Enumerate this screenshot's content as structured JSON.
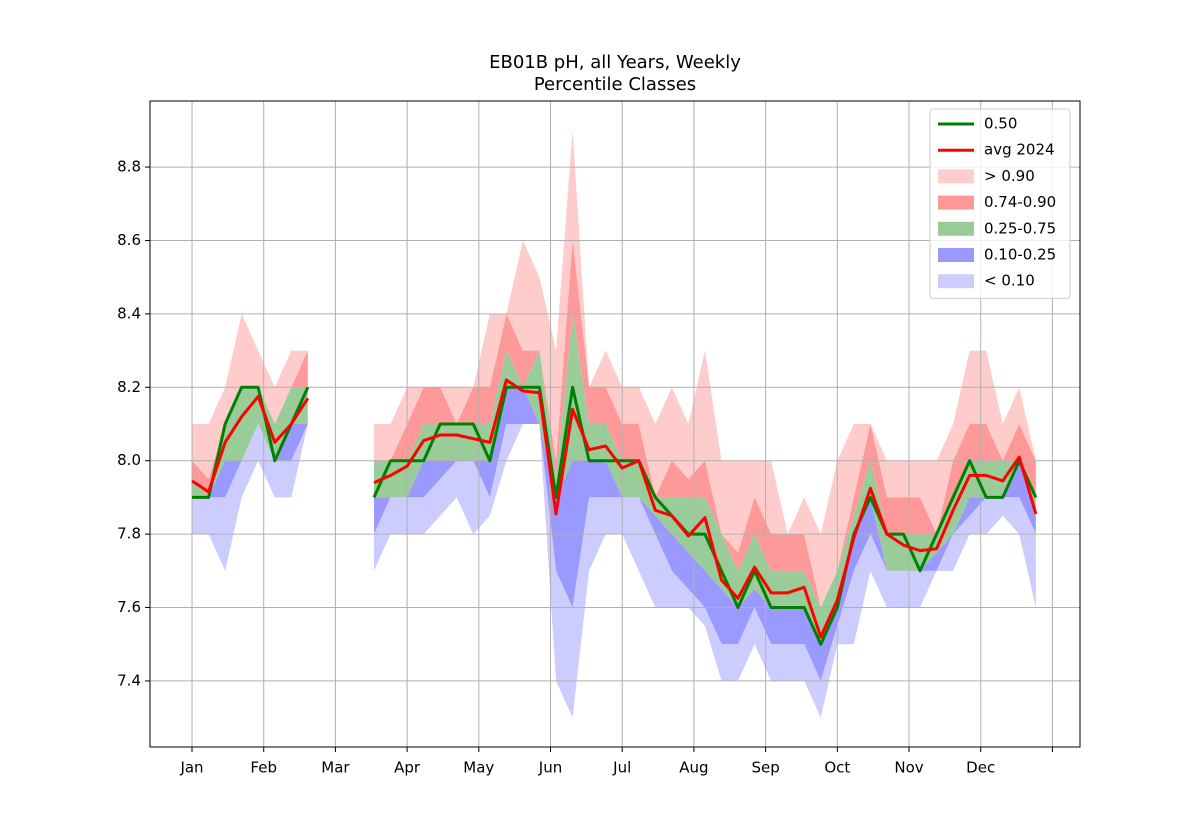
{
  "chart_data": {
    "type": "percentile_bands",
    "title": "EB01B pH, all Years, Weekly",
    "subtitle": "Percentile Classes",
    "x": [
      0,
      0.231,
      0.462,
      0.692,
      0.923,
      1.154,
      1.385,
      1.615,
      1.846,
      2.077,
      2.308,
      2.538,
      2.769,
      3.0,
      3.231,
      3.462,
      3.692,
      3.923,
      4.154,
      4.385,
      4.615,
      4.846,
      5.077,
      5.308,
      5.538,
      5.769,
      6.0,
      6.231,
      6.462,
      6.692,
      6.923,
      7.154,
      7.385,
      7.615,
      7.846,
      8.077,
      8.308,
      8.538,
      8.769,
      9.0,
      9.231,
      9.462,
      9.692,
      9.923,
      10.154,
      10.385,
      10.615,
      10.846,
      11.077,
      11.308,
      11.538,
      11.769
    ],
    "series": [
      {
        "name": "0.50",
        "color": "#008000",
        "values": [
          7.9,
          7.9,
          8.1,
          8.2,
          8.2,
          8.0,
          8.1,
          8.2,
          null,
          null,
          null,
          7.9,
          8.0,
          8.0,
          8.0,
          8.1,
          8.1,
          8.1,
          8.0,
          8.2,
          8.2,
          8.2,
          7.9,
          8.2,
          8.0,
          8.0,
          8.0,
          8.0,
          7.9,
          7.85,
          7.8,
          7.8,
          7.7,
          7.6,
          7.7,
          7.6,
          7.6,
          7.6,
          7.5,
          7.6,
          7.8,
          7.9,
          7.8,
          7.8,
          7.7,
          7.8,
          7.9,
          8.0,
          7.9,
          7.9,
          8.0,
          7.9
        ]
      },
      {
        "name": "avg 2024",
        "color": "#ff0000",
        "values": [
          7.945,
          7.915,
          8.05,
          8.12,
          8.175,
          8.05,
          8.1,
          8.17,
          null,
          null,
          null,
          7.94,
          7.96,
          7.985,
          8.055,
          8.07,
          8.07,
          8.06,
          8.05,
          8.22,
          8.19,
          8.185,
          7.855,
          8.14,
          8.03,
          8.04,
          7.98,
          8.0,
          7.865,
          7.85,
          7.795,
          7.845,
          7.675,
          7.625,
          7.71,
          7.64,
          7.64,
          7.655,
          7.52,
          7.62,
          7.79,
          7.925,
          7.8,
          7.77,
          7.755,
          7.76,
          7.865,
          7.96,
          7.96,
          7.945,
          8.01,
          7.855
        ]
      }
    ],
    "bands": [
      {
        "name": "> 0.90",
        "color": "#ffcccc",
        "low": [
          8.0,
          7.95,
          8.1,
          8.2,
          8.2,
          8.1,
          8.2,
          8.3,
          null,
          null,
          null,
          8.0,
          8.0,
          8.1,
          8.2,
          8.2,
          8.1,
          8.2,
          8.2,
          8.4,
          8.3,
          8.3,
          8.0,
          8.6,
          8.2,
          8.2,
          8.1,
          8.1,
          7.9,
          8.0,
          7.95,
          8.0,
          7.8,
          7.75,
          7.9,
          7.8,
          7.8,
          7.8,
          7.6,
          7.7,
          7.9,
          8.1,
          7.9,
          7.9,
          7.9,
          7.8,
          8.0,
          8.1,
          8.1,
          8.0,
          8.1,
          8.0
        ],
        "high": [
          8.1,
          8.1,
          8.2,
          8.4,
          8.3,
          8.2,
          8.3,
          8.3,
          null,
          null,
          null,
          8.1,
          8.1,
          8.2,
          8.2,
          8.2,
          8.2,
          8.2,
          8.4,
          8.4,
          8.6,
          8.5,
          8.3,
          8.9,
          8.2,
          8.3,
          8.2,
          8.2,
          8.1,
          8.2,
          8.1,
          8.3,
          8.0,
          8.0,
          8.0,
          8.0,
          7.8,
          7.9,
          7.8,
          8.0,
          8.1,
          8.1,
          8.0,
          8.0,
          8.0,
          8.0,
          8.1,
          8.3,
          8.3,
          8.1,
          8.2,
          8.0
        ]
      },
      {
        "name": "0.74-0.90",
        "color": "#ff9999",
        "low": [
          7.95,
          7.9,
          8.1,
          8.2,
          8.2,
          8.1,
          8.2,
          8.2,
          null,
          null,
          null,
          8.0,
          8.0,
          8.0,
          8.1,
          8.1,
          8.1,
          8.1,
          8.1,
          8.3,
          8.2,
          8.3,
          7.95,
          8.4,
          8.1,
          8.1,
          8.0,
          8.0,
          7.9,
          7.9,
          7.9,
          7.9,
          7.8,
          7.7,
          7.8,
          7.7,
          7.7,
          7.7,
          7.6,
          7.7,
          7.85,
          8.0,
          7.8,
          7.8,
          7.8,
          7.8,
          7.9,
          8.0,
          8.0,
          8.0,
          8.0,
          7.9
        ],
        "high": [
          8.0,
          7.95,
          8.1,
          8.2,
          8.2,
          8.1,
          8.2,
          8.3,
          null,
          null,
          null,
          8.0,
          8.0,
          8.1,
          8.2,
          8.2,
          8.1,
          8.2,
          8.2,
          8.4,
          8.3,
          8.3,
          8.0,
          8.6,
          8.2,
          8.2,
          8.1,
          8.1,
          7.9,
          8.0,
          7.95,
          8.0,
          7.8,
          7.75,
          7.9,
          7.8,
          7.8,
          7.8,
          7.6,
          7.7,
          7.9,
          8.1,
          7.9,
          7.9,
          7.9,
          7.8,
          8.0,
          8.1,
          8.1,
          8.0,
          8.1,
          8.0
        ]
      },
      {
        "name": "0.25-0.75",
        "color": "#99cc99",
        "low": [
          7.9,
          7.9,
          8.0,
          8.0,
          8.1,
          8.0,
          8.1,
          8.1,
          null,
          null,
          null,
          7.9,
          7.9,
          7.9,
          8.0,
          8.0,
          8.0,
          8.0,
          8.0,
          8.2,
          8.2,
          8.1,
          7.9,
          8.0,
          8.0,
          8.0,
          7.9,
          7.9,
          7.85,
          7.8,
          7.75,
          7.7,
          7.65,
          7.6,
          7.65,
          7.6,
          7.6,
          7.6,
          7.5,
          7.6,
          7.8,
          7.9,
          7.7,
          7.7,
          7.7,
          7.75,
          7.8,
          7.9,
          7.9,
          7.9,
          8.0,
          7.85
        ],
        "high": [
          7.95,
          7.9,
          8.1,
          8.2,
          8.2,
          8.1,
          8.2,
          8.2,
          null,
          null,
          null,
          8.0,
          8.0,
          8.0,
          8.1,
          8.1,
          8.1,
          8.1,
          8.1,
          8.3,
          8.2,
          8.3,
          7.95,
          8.4,
          8.1,
          8.1,
          8.0,
          8.0,
          7.9,
          7.9,
          7.9,
          7.9,
          7.8,
          7.7,
          7.8,
          7.7,
          7.7,
          7.7,
          7.6,
          7.7,
          7.85,
          8.0,
          7.8,
          7.8,
          7.8,
          7.8,
          7.9,
          8.0,
          8.0,
          8.0,
          8.0,
          7.9
        ]
      },
      {
        "name": "0.10-0.25",
        "color": "#9999ff",
        "low": [
          7.9,
          7.9,
          7.9,
          8.0,
          8.1,
          8.0,
          8.0,
          8.1,
          null,
          null,
          null,
          7.8,
          7.9,
          7.9,
          7.9,
          7.95,
          8.0,
          8.0,
          7.9,
          8.1,
          8.1,
          8.1,
          7.7,
          7.6,
          7.9,
          7.9,
          7.9,
          7.9,
          7.8,
          7.7,
          7.65,
          7.6,
          7.5,
          7.5,
          7.6,
          7.5,
          7.5,
          7.5,
          7.4,
          7.55,
          7.7,
          7.8,
          7.7,
          7.7,
          7.7,
          7.7,
          7.8,
          7.85,
          7.9,
          7.9,
          7.9,
          7.8
        ],
        "high": [
          7.9,
          7.9,
          8.0,
          8.0,
          8.1,
          8.0,
          8.1,
          8.1,
          null,
          null,
          null,
          7.9,
          7.9,
          7.9,
          8.0,
          8.0,
          8.0,
          8.0,
          8.0,
          8.2,
          8.2,
          8.1,
          7.9,
          8.0,
          8.0,
          8.0,
          7.9,
          7.9,
          7.85,
          7.8,
          7.75,
          7.7,
          7.65,
          7.6,
          7.65,
          7.6,
          7.6,
          7.6,
          7.5,
          7.6,
          7.8,
          7.9,
          7.7,
          7.7,
          7.7,
          7.75,
          7.8,
          7.9,
          7.9,
          7.9,
          8.0,
          7.85
        ]
      },
      {
        "name": "< 0.10",
        "color": "#ccccff",
        "low": [
          7.8,
          7.8,
          7.7,
          7.9,
          8.0,
          7.9,
          7.9,
          8.1,
          null,
          null,
          null,
          7.7,
          7.8,
          7.8,
          7.8,
          7.85,
          7.9,
          7.8,
          7.85,
          8.0,
          8.1,
          8.1,
          7.4,
          7.3,
          7.7,
          7.8,
          7.8,
          7.7,
          7.6,
          7.6,
          7.6,
          7.55,
          7.4,
          7.4,
          7.5,
          7.4,
          7.4,
          7.4,
          7.3,
          7.5,
          7.5,
          7.7,
          7.6,
          7.6,
          7.6,
          7.7,
          7.7,
          7.8,
          7.8,
          7.85,
          7.8,
          7.6
        ],
        "high": [
          7.9,
          7.9,
          7.9,
          8.0,
          8.1,
          8.0,
          8.0,
          8.1,
          null,
          null,
          null,
          7.8,
          7.9,
          7.9,
          7.9,
          7.95,
          8.0,
          8.0,
          7.9,
          8.1,
          8.1,
          8.1,
          7.7,
          7.6,
          7.9,
          7.9,
          7.9,
          7.9,
          7.8,
          7.7,
          7.65,
          7.6,
          7.5,
          7.5,
          7.6,
          7.5,
          7.5,
          7.5,
          7.4,
          7.55,
          7.7,
          7.8,
          7.7,
          7.7,
          7.7,
          7.7,
          7.8,
          7.85,
          7.9,
          7.9,
          7.9,
          7.8
        ]
      }
    ],
    "xlim": [
      -0.586,
      12.385
    ],
    "xticks": [
      {
        "value": 0,
        "label": "Jan"
      },
      {
        "value": 1,
        "label": "Feb"
      },
      {
        "value": 2,
        "label": "Mar"
      },
      {
        "value": 3,
        "label": "Apr"
      },
      {
        "value": 4,
        "label": "May"
      },
      {
        "value": 5,
        "label": "Jun"
      },
      {
        "value": 6,
        "label": "Jul"
      },
      {
        "value": 7,
        "label": "Aug"
      },
      {
        "value": 8,
        "label": "Sep"
      },
      {
        "value": 9,
        "label": "Oct"
      },
      {
        "value": 10,
        "label": "Nov"
      },
      {
        "value": 11,
        "label": "Dec"
      },
      {
        "value": 12,
        "label": null
      }
    ],
    "ylim": [
      7.22,
      8.98
    ],
    "yticks": [
      7.4,
      7.6,
      7.8,
      {
        "value": 8,
        "label": "8.0"
      },
      8.2,
      8.4,
      8.6,
      8.8
    ],
    "grid": true,
    "legend": "upper right"
  }
}
